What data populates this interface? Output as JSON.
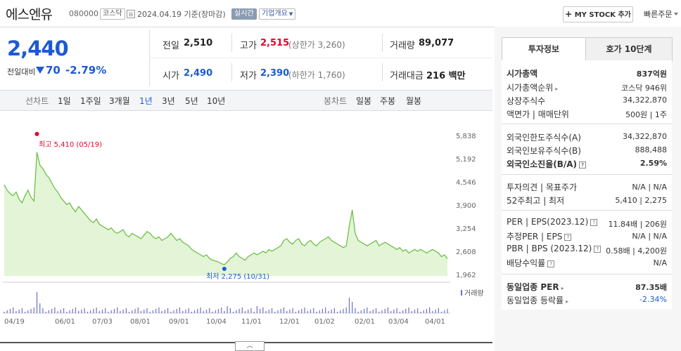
{
  "header": {
    "stock_name": "에스엔유",
    "stock_code": "080000",
    "market_badge": "코스닥",
    "date_text": "2024.04.19  기준(장마감)",
    "realtime_badge": "실시간",
    "corp_info_button": "기업개요",
    "my_stock_button": "MY STOCK 추가",
    "quick_order": "빠른주문"
  },
  "price": {
    "current": "2,440",
    "change_label": "전일대비",
    "change_value": "70",
    "change_percent": "-2.79%",
    "direction": "down"
  },
  "quotes": {
    "prev_close_label": "전일",
    "prev_close": "2,510",
    "high_label": "고가",
    "high": "2,515",
    "upper_limit": "(상한가 3,260)",
    "volume_label": "거래량",
    "volume": "89,077",
    "open_label": "시가",
    "open": "2,490",
    "low_label": "저가",
    "low": "2,390",
    "lower_limit": "(하한가 1,760)",
    "trade_value_label": "거래대금",
    "trade_value": "216 백만"
  },
  "chart_toolbar": {
    "line_label": "선차트",
    "ranges": [
      "1일",
      "1주일",
      "3개월",
      "1년",
      "3년",
      "5년",
      "10년"
    ],
    "selected_range": "1년",
    "candle_label": "봉차트",
    "candles": [
      "일봉",
      "주봉",
      "월봉"
    ]
  },
  "chart_data": {
    "type": "area",
    "title": "",
    "y_ticks": [
      "5,838",
      "5,192",
      "4,546",
      "3,900",
      "3,254",
      "2,608",
      "1,962"
    ],
    "ylim": [
      1962,
      5838
    ],
    "x_labels": [
      "04/19",
      "06/01",
      "07/03",
      "08/01",
      "09/01",
      "10/04",
      "11/01",
      "12/01",
      "01/02",
      "02/01",
      "03/04",
      "04/01"
    ],
    "high_annotation": "최고 5,410 (05/19)",
    "low_annotation": "최저 2,275 (10/31)",
    "volume_legend": "거래량",
    "colors": {
      "line": "#6fbf4a",
      "fill": "#e3f5d6",
      "high": "#e4002b",
      "low": "#1c5ad4"
    },
    "series": [
      {
        "values": [
          4500,
          4350,
          4250,
          4200,
          4300,
          4100,
          4000,
          4200,
          4350,
          4150,
          4050,
          5410,
          5050,
          4950,
          4800,
          4700,
          4550,
          4400,
          4300,
          4150,
          4050,
          3950,
          4000,
          3850,
          3750,
          3900,
          3800,
          3700,
          3600,
          3500,
          3450,
          3550,
          3400,
          3350,
          3300,
          3250,
          3300,
          3200,
          3150,
          3200,
          3250,
          3100,
          3050,
          3150,
          3100,
          3050,
          3000,
          3100,
          3200,
          3150,
          3050,
          3000,
          3050,
          2950,
          3000,
          3050,
          3150,
          3050,
          2950,
          3000,
          2900,
          2850,
          2800,
          2700,
          2650,
          2600,
          2550,
          2500,
          2550,
          2450,
          2400,
          2380,
          2350,
          2300,
          2275,
          2350,
          2450,
          2500,
          2600,
          2500,
          2450,
          2400,
          2500,
          2550,
          2600,
          2550,
          2600,
          2650,
          2600,
          2700,
          2650,
          2700,
          2750,
          2800,
          2950,
          3000,
          2900,
          2850,
          2950,
          3000,
          2850,
          2800,
          2900,
          2950,
          2850,
          2800,
          2900,
          2950,
          3000,
          3050,
          2950,
          2900,
          2850,
          2800,
          2750,
          2800,
          3350,
          3800,
          3150,
          2950,
          2900,
          2850,
          2800,
          2850,
          2900,
          2950,
          2800,
          2850,
          2900,
          2850,
          2800,
          2750,
          2700,
          2750,
          2650,
          2700,
          2600,
          2650,
          2700,
          2650,
          2700,
          2650,
          2600,
          2650,
          2700,
          2650,
          2600,
          2500,
          2550,
          2440
        ]
      }
    ]
  },
  "sidebar": {
    "tabs": [
      "투자정보",
      "호가 10단계"
    ],
    "selected_tab": "투자정보",
    "market_cap_label": "시가총액",
    "market_cap": "837억원",
    "rank_label": "시가총액순위",
    "rank": "코스닥 946위",
    "shares_label": "상장주식수",
    "shares": "34,322,870",
    "par_label": "액면가 | 매매단위",
    "par": "500원 | 1주",
    "foreign_limit_label": "외국인한도주식수(A)",
    "foreign_limit": "34,322,870",
    "foreign_hold_label": "외국인보유주식수(B)",
    "foreign_hold": "888,488",
    "foreign_rate_label": "외국인소진율(B/A)",
    "foreign_rate": "2.59%",
    "opinion_label": "투자의견 | 목표주가",
    "opinion": "N/A | N/A",
    "week52_label": "52주최고 | 최저",
    "week52": "5,410 | 2,275",
    "per_label": "PER | EPS(2023.12)",
    "per": "11.84배 | 206원",
    "est_per_label": "추정PER | EPS",
    "est_per": "N/A | N/A",
    "pbr_label": "PBR | BPS (2023.12)",
    "pbr": "0.58배 | 4,200원",
    "dividend_label": "배당수익률",
    "dividend": "N/A",
    "industry_per_label": "동일업종 PER",
    "industry_per": "87.35배",
    "industry_rate_label": "동일업종 등락률",
    "industry_rate": "-2.34%"
  }
}
